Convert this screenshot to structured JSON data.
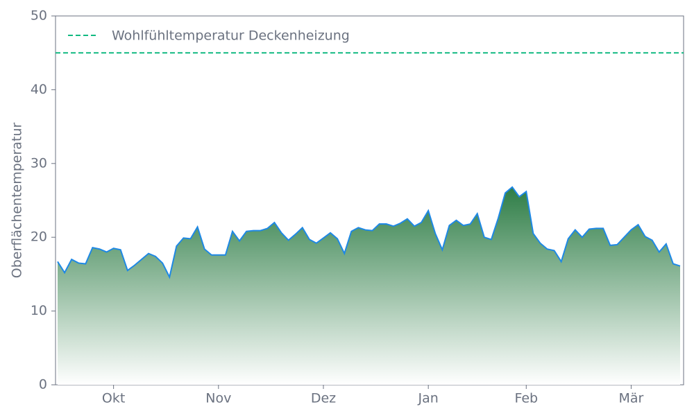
{
  "chart_data": {
    "type": "area",
    "y_label": "Oberflächentemperatur",
    "categories": [
      null,
      null,
      null,
      null,
      null,
      null,
      null,
      null,
      "Okt",
      null,
      null,
      null,
      null,
      null,
      null,
      null,
      null,
      null,
      null,
      null,
      null,
      null,
      null,
      "Nov",
      null,
      null,
      null,
      null,
      null,
      null,
      null,
      null,
      null,
      null,
      null,
      null,
      null,
      null,
      "Dez",
      null,
      null,
      null,
      null,
      null,
      null,
      null,
      null,
      null,
      null,
      null,
      null,
      null,
      null,
      "Jan",
      null,
      null,
      null,
      null,
      null,
      null,
      null,
      null,
      null,
      null,
      null,
      null,
      null,
      "Feb",
      null,
      null,
      null,
      null,
      null,
      null,
      null,
      null,
      null,
      null,
      null,
      null,
      null,
      null,
      "Mär",
      null,
      null,
      null,
      null,
      null,
      null,
      null
    ],
    "values": [
      16.7,
      15.2,
      17.0,
      16.5,
      16.4,
      18.6,
      18.4,
      18.0,
      18.5,
      18.3,
      15.5,
      16.2,
      17.0,
      17.8,
      17.4,
      16.5,
      14.6,
      18.8,
      19.9,
      19.8,
      21.4,
      18.4,
      17.6,
      17.6,
      17.6,
      20.8,
      19.5,
      20.8,
      20.9,
      20.9,
      21.2,
      22.0,
      20.6,
      19.6,
      20.4,
      21.3,
      19.7,
      19.2,
      19.9,
      20.6,
      19.8,
      17.8,
      20.8,
      21.3,
      21.0,
      20.9,
      21.8,
      21.8,
      21.5,
      21.9,
      22.5,
      21.5,
      22.0,
      23.6,
      20.5,
      18.3,
      21.6,
      22.3,
      21.6,
      21.8,
      23.2,
      20.0,
      19.7,
      22.6,
      26.0,
      26.8,
      25.5,
      26.2,
      20.5,
      19.2,
      18.4,
      18.2,
      16.7,
      19.8,
      21.0,
      20.0,
      21.1,
      21.2,
      21.2,
      18.9,
      19.0,
      20.0,
      21.0,
      21.7,
      20.1,
      19.6,
      18.0,
      19.1,
      16.4,
      16.1
    ],
    "color": "#1e88e5",
    "fill_colors": [
      "#2e7d46",
      "#ffffff"
    ],
    "threshold": {
      "name": "Wohlfühltemperatur Deckenheizung",
      "value": 45,
      "color": "#10b981"
    },
    "ylim": [
      0,
      50
    ],
    "yticks": [
      0,
      10,
      20,
      30,
      40,
      50
    ]
  }
}
